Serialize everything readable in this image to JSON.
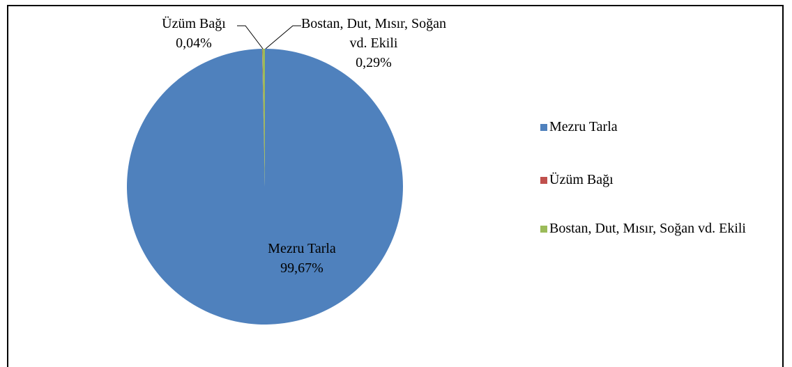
{
  "chart_data": {
    "type": "pie",
    "categories": [
      "Mezru Tarla",
      "Üzüm Bağı",
      "Bostan, Dut, Mısır, Soğan vd. Ekili"
    ],
    "values": [
      99.67,
      0.04,
      0.29
    ],
    "value_labels": [
      "99,67%",
      "0,04%",
      "0,29%"
    ],
    "colors": [
      "#4f81bd",
      "#c0504d",
      "#9bbb59"
    ],
    "legend": "right"
  }
}
